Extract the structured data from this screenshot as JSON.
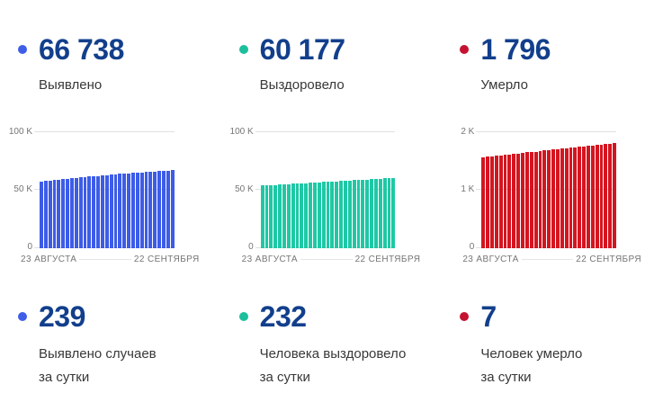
{
  "colors": {
    "background": "#ffffff",
    "number_text": "#123f8c",
    "label_text": "#383838",
    "axis_text": "#757575",
    "gridline": "#e0e0e0"
  },
  "panels": [
    {
      "dot_color": "#3F5EE8",
      "total": "66 738",
      "title": "Выявлено",
      "daily": "239",
      "daily_label_line1": "Выявлено случаев",
      "daily_label_line2": "за сутки"
    },
    {
      "dot_color": "#1DBE9C",
      "total": "60 177",
      "title": "Выздоровело",
      "daily": "232",
      "daily_label_line1": "Человека выздоровело",
      "daily_label_line2": "за сутки"
    },
    {
      "dot_color": "#C41230",
      "total": "1 796",
      "title": "Умерло",
      "daily": "7",
      "daily_label_line1": "Человек умерло",
      "daily_label_line2": "за сутки"
    }
  ],
  "chart_data": [
    {
      "type": "bar",
      "title": "Выявлено (накопительно)",
      "bar_color": "#3D5CE7",
      "ylim": [
        0,
        100000
      ],
      "y_ticks": [
        "0",
        "50 K",
        "100 K"
      ],
      "x_start": "23 АВГУСТА",
      "x_end": "22 СЕНТЯБРЯ",
      "grid": true,
      "values": [
        57154,
        57554,
        57948,
        58337,
        58720,
        59098,
        59470,
        59837,
        60198,
        60554,
        60904,
        61248,
        61587,
        61920,
        62248,
        62570,
        62887,
        63198,
        63504,
        63804,
        64098,
        64387,
        64670,
        64948,
        65220,
        65487,
        65748,
        66004,
        66254,
        66499,
        66738
      ]
    },
    {
      "type": "bar",
      "title": "Выздоровело (накопительно)",
      "bar_color": "#1FC8A5",
      "ylim": [
        0,
        100000
      ],
      "y_ticks": [
        "0",
        "50 K",
        "100 K"
      ],
      "x_start": "23 АВГУСТА",
      "x_end": "22 СЕНТЯБРЯ",
      "grid": true,
      "values": [
        53500,
        53723,
        53945,
        54168,
        54390,
        54613,
        54835,
        55058,
        55281,
        55503,
        55726,
        55948,
        56171,
        56393,
        56616,
        56839,
        57061,
        57284,
        57506,
        57729,
        57951,
        58174,
        58397,
        58619,
        58842,
        59064,
        59287,
        59509,
        59732,
        59945,
        60177
      ]
    },
    {
      "type": "bar",
      "title": "Умерло (накопительно)",
      "bar_color": "#D41520",
      "ylim": [
        0,
        2000
      ],
      "y_ticks": [
        "0",
        "1 K",
        "2 K"
      ],
      "x_start": "23 АВГУСТА",
      "x_end": "22 СЕНТЯБРЯ",
      "grid": true,
      "values": [
        1560,
        1568,
        1576,
        1584,
        1591,
        1599,
        1607,
        1615,
        1623,
        1631,
        1639,
        1647,
        1654,
        1662,
        1670,
        1678,
        1686,
        1694,
        1702,
        1710,
        1717,
        1725,
        1733,
        1741,
        1749,
        1757,
        1765,
        1772,
        1780,
        1789,
        1796
      ]
    }
  ]
}
